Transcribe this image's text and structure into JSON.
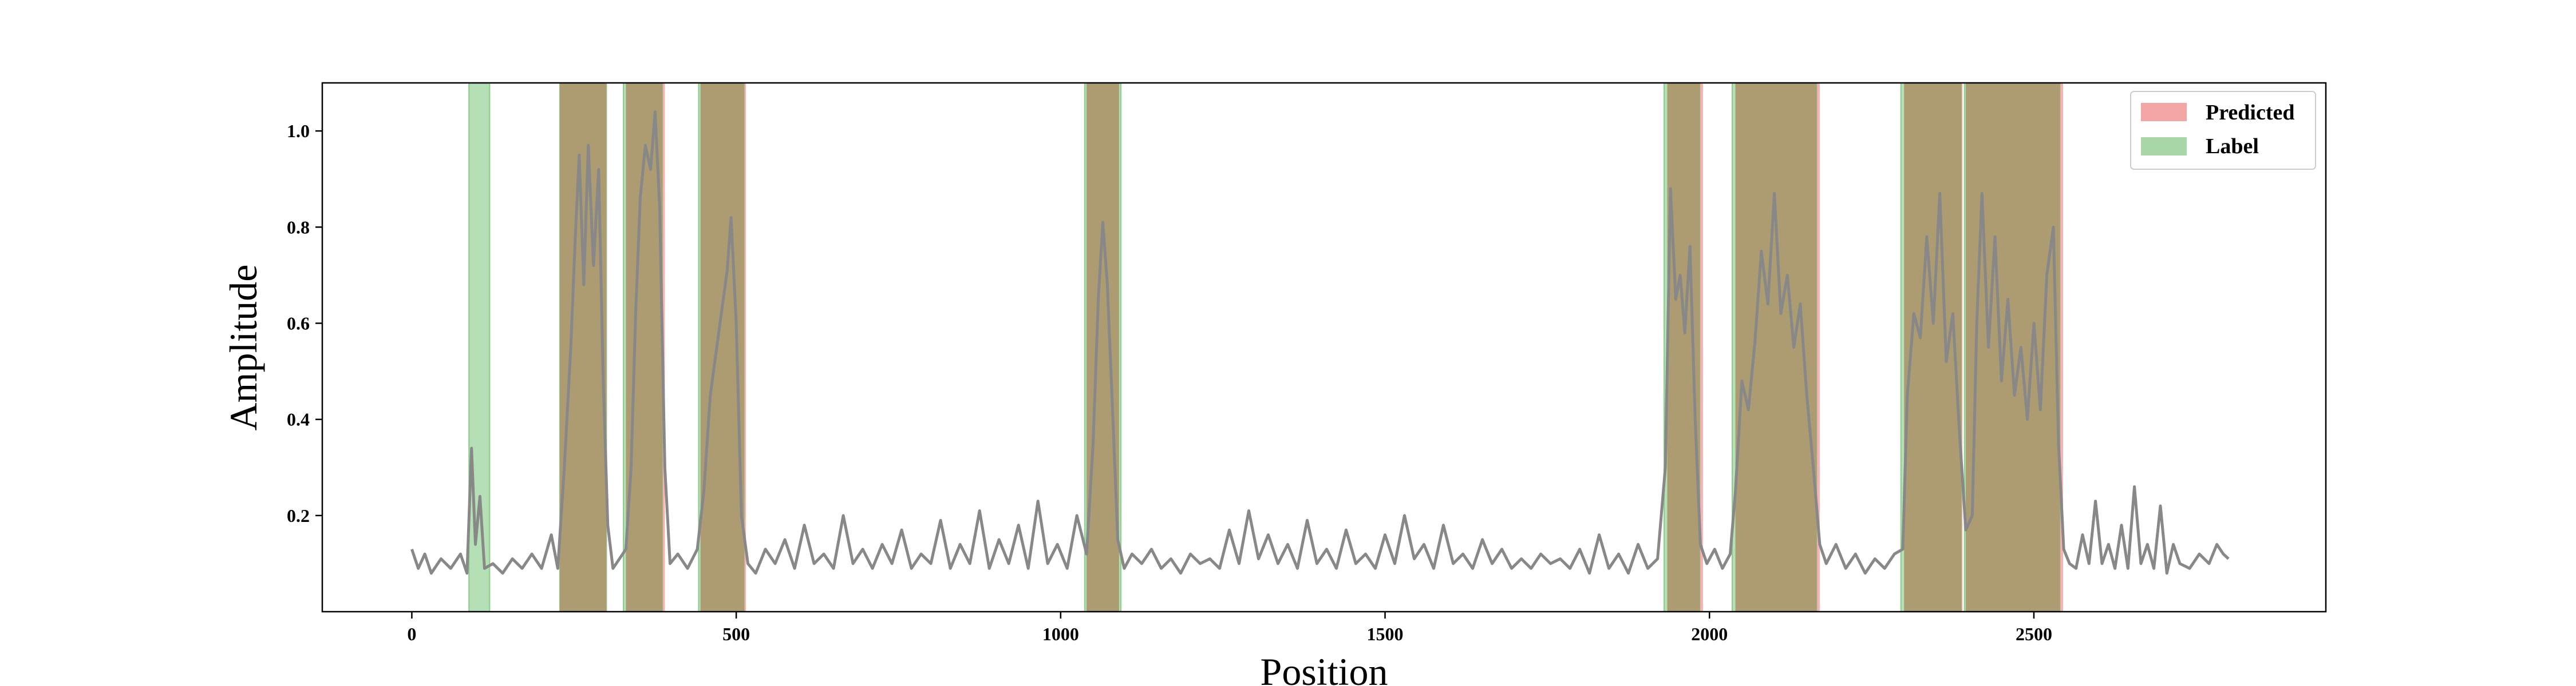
{
  "chart_data": {
    "type": "line",
    "xlabel": "Position",
    "ylabel": "Amplitude",
    "xlim": [
      -138,
      2950
    ],
    "ylim": [
      0.0,
      1.1
    ],
    "xticks": [
      0,
      500,
      1000,
      1500,
      2000,
      2500
    ],
    "yticks": [
      0.2,
      0.4,
      0.6,
      0.8,
      1.0
    ],
    "ytick_labels": [
      "0.2",
      "0.4",
      "0.6",
      "0.8",
      "1.0"
    ],
    "grid": false,
    "legend": {
      "placement": "top-right",
      "entries": [
        {
          "label": "Predicted",
          "color": "#f4a6a6"
        },
        {
          "label": "Label",
          "color": "#a8d8a8"
        }
      ]
    },
    "series": [
      {
        "color": "#888888",
        "points": [
          [
            0,
            0.13
          ],
          [
            10,
            0.09
          ],
          [
            20,
            0.12
          ],
          [
            30,
            0.08
          ],
          [
            45,
            0.11
          ],
          [
            60,
            0.09
          ],
          [
            75,
            0.12
          ],
          [
            85,
            0.08
          ],
          [
            92,
            0.34
          ],
          [
            98,
            0.14
          ],
          [
            105,
            0.24
          ],
          [
            112,
            0.09
          ],
          [
            125,
            0.1
          ],
          [
            140,
            0.08
          ],
          [
            155,
            0.11
          ],
          [
            170,
            0.09
          ],
          [
            185,
            0.12
          ],
          [
            200,
            0.09
          ],
          [
            215,
            0.16
          ],
          [
            225,
            0.09
          ],
          [
            235,
            0.3
          ],
          [
            245,
            0.55
          ],
          [
            252,
            0.78
          ],
          [
            258,
            0.95
          ],
          [
            265,
            0.68
          ],
          [
            272,
            0.97
          ],
          [
            280,
            0.72
          ],
          [
            288,
            0.92
          ],
          [
            295,
            0.48
          ],
          [
            302,
            0.18
          ],
          [
            310,
            0.09
          ],
          [
            320,
            0.11
          ],
          [
            330,
            0.13
          ],
          [
            338,
            0.3
          ],
          [
            345,
            0.62
          ],
          [
            352,
            0.86
          ],
          [
            360,
            0.97
          ],
          [
            368,
            0.92
          ],
          [
            375,
            1.04
          ],
          [
            382,
            0.84
          ],
          [
            390,
            0.3
          ],
          [
            398,
            0.1
          ],
          [
            410,
            0.12
          ],
          [
            425,
            0.09
          ],
          [
            440,
            0.13
          ],
          [
            450,
            0.25
          ],
          [
            460,
            0.45
          ],
          [
            470,
            0.55
          ],
          [
            478,
            0.63
          ],
          [
            486,
            0.71
          ],
          [
            492,
            0.82
          ],
          [
            500,
            0.6
          ],
          [
            508,
            0.2
          ],
          [
            518,
            0.1
          ],
          [
            530,
            0.08
          ],
          [
            545,
            0.13
          ],
          [
            560,
            0.1
          ],
          [
            575,
            0.15
          ],
          [
            590,
            0.09
          ],
          [
            605,
            0.18
          ],
          [
            620,
            0.1
          ],
          [
            635,
            0.12
          ],
          [
            650,
            0.09
          ],
          [
            665,
            0.2
          ],
          [
            680,
            0.1
          ],
          [
            695,
            0.13
          ],
          [
            710,
            0.09
          ],
          [
            725,
            0.14
          ],
          [
            740,
            0.1
          ],
          [
            755,
            0.17
          ],
          [
            770,
            0.09
          ],
          [
            785,
            0.12
          ],
          [
            800,
            0.1
          ],
          [
            815,
            0.19
          ],
          [
            830,
            0.09
          ],
          [
            845,
            0.14
          ],
          [
            860,
            0.1
          ],
          [
            875,
            0.21
          ],
          [
            890,
            0.09
          ],
          [
            905,
            0.15
          ],
          [
            920,
            0.1
          ],
          [
            935,
            0.18
          ],
          [
            950,
            0.09
          ],
          [
            965,
            0.23
          ],
          [
            980,
            0.1
          ],
          [
            995,
            0.14
          ],
          [
            1010,
            0.09
          ],
          [
            1025,
            0.2
          ],
          [
            1040,
            0.12
          ],
          [
            1050,
            0.35
          ],
          [
            1058,
            0.65
          ],
          [
            1065,
            0.81
          ],
          [
            1072,
            0.68
          ],
          [
            1080,
            0.42
          ],
          [
            1088,
            0.15
          ],
          [
            1098,
            0.09
          ],
          [
            1110,
            0.12
          ],
          [
            1125,
            0.1
          ],
          [
            1140,
            0.13
          ],
          [
            1155,
            0.09
          ],
          [
            1170,
            0.11
          ],
          [
            1185,
            0.08
          ],
          [
            1200,
            0.12
          ],
          [
            1215,
            0.1
          ],
          [
            1230,
            0.11
          ],
          [
            1245,
            0.09
          ],
          [
            1260,
            0.17
          ],
          [
            1275,
            0.1
          ],
          [
            1290,
            0.21
          ],
          [
            1305,
            0.11
          ],
          [
            1320,
            0.16
          ],
          [
            1335,
            0.1
          ],
          [
            1350,
            0.14
          ],
          [
            1365,
            0.09
          ],
          [
            1380,
            0.19
          ],
          [
            1395,
            0.1
          ],
          [
            1410,
            0.13
          ],
          [
            1425,
            0.09
          ],
          [
            1440,
            0.17
          ],
          [
            1455,
            0.1
          ],
          [
            1470,
            0.12
          ],
          [
            1485,
            0.09
          ],
          [
            1500,
            0.16
          ],
          [
            1515,
            0.1
          ],
          [
            1530,
            0.2
          ],
          [
            1545,
            0.11
          ],
          [
            1560,
            0.14
          ],
          [
            1575,
            0.09
          ],
          [
            1590,
            0.18
          ],
          [
            1605,
            0.1
          ],
          [
            1620,
            0.12
          ],
          [
            1635,
            0.09
          ],
          [
            1650,
            0.15
          ],
          [
            1665,
            0.1
          ],
          [
            1680,
            0.13
          ],
          [
            1695,
            0.09
          ],
          [
            1710,
            0.11
          ],
          [
            1725,
            0.09
          ],
          [
            1740,
            0.12
          ],
          [
            1755,
            0.1
          ],
          [
            1770,
            0.11
          ],
          [
            1785,
            0.09
          ],
          [
            1800,
            0.13
          ],
          [
            1815,
            0.08
          ],
          [
            1830,
            0.16
          ],
          [
            1845,
            0.09
          ],
          [
            1860,
            0.12
          ],
          [
            1875,
            0.08
          ],
          [
            1890,
            0.14
          ],
          [
            1905,
            0.09
          ],
          [
            1920,
            0.11
          ],
          [
            1932,
            0.3
          ],
          [
            1940,
            0.88
          ],
          [
            1948,
            0.65
          ],
          [
            1955,
            0.7
          ],
          [
            1962,
            0.58
          ],
          [
            1970,
            0.76
          ],
          [
            1978,
            0.4
          ],
          [
            1986,
            0.14
          ],
          [
            1996,
            0.1
          ],
          [
            2008,
            0.13
          ],
          [
            2020,
            0.09
          ],
          [
            2032,
            0.12
          ],
          [
            2040,
            0.25
          ],
          [
            2050,
            0.48
          ],
          [
            2060,
            0.42
          ],
          [
            2070,
            0.56
          ],
          [
            2080,
            0.75
          ],
          [
            2090,
            0.64
          ],
          [
            2100,
            0.87
          ],
          [
            2110,
            0.62
          ],
          [
            2120,
            0.7
          ],
          [
            2130,
            0.55
          ],
          [
            2140,
            0.64
          ],
          [
            2150,
            0.45
          ],
          [
            2160,
            0.3
          ],
          [
            2170,
            0.14
          ],
          [
            2180,
            0.1
          ],
          [
            2195,
            0.14
          ],
          [
            2210,
            0.09
          ],
          [
            2225,
            0.12
          ],
          [
            2240,
            0.08
          ],
          [
            2255,
            0.11
          ],
          [
            2270,
            0.09
          ],
          [
            2285,
            0.12
          ],
          [
            2298,
            0.13
          ],
          [
            2305,
            0.45
          ],
          [
            2315,
            0.62
          ],
          [
            2325,
            0.57
          ],
          [
            2335,
            0.78
          ],
          [
            2345,
            0.6
          ],
          [
            2355,
            0.87
          ],
          [
            2365,
            0.52
          ],
          [
            2375,
            0.62
          ],
          [
            2385,
            0.38
          ],
          [
            2395,
            0.17
          ],
          [
            2405,
            0.2
          ],
          [
            2412,
            0.6
          ],
          [
            2420,
            0.87
          ],
          [
            2430,
            0.55
          ],
          [
            2440,
            0.78
          ],
          [
            2450,
            0.48
          ],
          [
            2460,
            0.65
          ],
          [
            2470,
            0.45
          ],
          [
            2480,
            0.55
          ],
          [
            2490,
            0.4
          ],
          [
            2500,
            0.6
          ],
          [
            2510,
            0.42
          ],
          [
            2520,
            0.7
          ],
          [
            2530,
            0.8
          ],
          [
            2538,
            0.35
          ],
          [
            2546,
            0.13
          ],
          [
            2555,
            0.1
          ],
          [
            2565,
            0.09
          ],
          [
            2575,
            0.16
          ],
          [
            2585,
            0.1
          ],
          [
            2595,
            0.23
          ],
          [
            2605,
            0.1
          ],
          [
            2615,
            0.14
          ],
          [
            2625,
            0.09
          ],
          [
            2635,
            0.18
          ],
          [
            2645,
            0.09
          ],
          [
            2655,
            0.26
          ],
          [
            2665,
            0.1
          ],
          [
            2675,
            0.14
          ],
          [
            2685,
            0.09
          ],
          [
            2695,
            0.22
          ],
          [
            2705,
            0.08
          ],
          [
            2715,
            0.14
          ],
          [
            2725,
            0.1
          ],
          [
            2740,
            0.09
          ],
          [
            2755,
            0.12
          ],
          [
            2770,
            0.1
          ],
          [
            2782,
            0.14
          ],
          [
            2792,
            0.12
          ],
          [
            2800,
            0.11
          ]
        ]
      }
    ],
    "predicted_regions": [
      [
        228,
        300
      ],
      [
        330,
        390
      ],
      [
        445,
        515
      ],
      [
        1040,
        1090
      ],
      [
        1935,
        1990
      ],
      [
        2040,
        2170
      ],
      [
        2300,
        2390
      ],
      [
        2395,
        2545
      ]
    ],
    "label_regions": [
      [
        88,
        120
      ],
      [
        228,
        300
      ],
      [
        326,
        386
      ],
      [
        442,
        512
      ],
      [
        1037,
        1093
      ],
      [
        1930,
        1985
      ],
      [
        2035,
        2165
      ],
      [
        2295,
        2388
      ],
      [
        2393,
        2540
      ]
    ]
  },
  "colors": {
    "line": "#888888",
    "predicted": "#f4a6a6",
    "label": "#a8d8a8",
    "overlap": "#ad9c72"
  }
}
